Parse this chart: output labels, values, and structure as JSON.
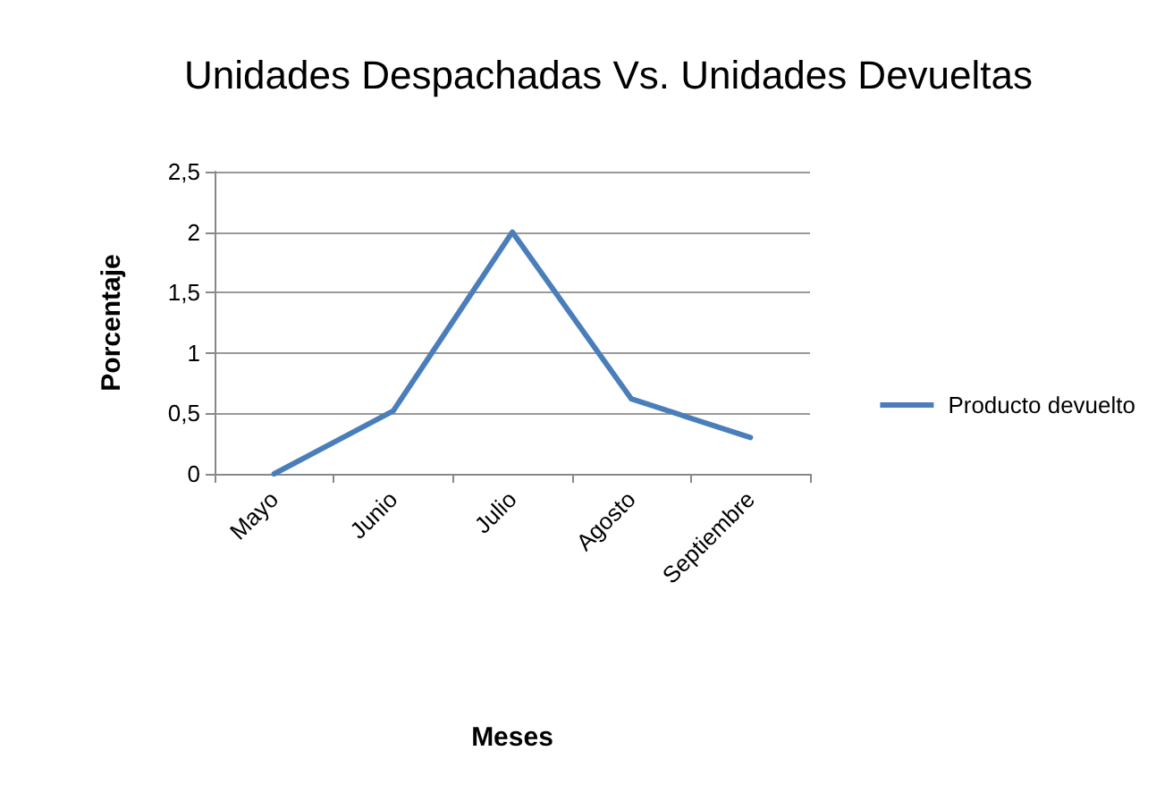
{
  "chart_data": {
    "type": "line",
    "title": "Unidades Despachadas Vs. Unidades Devueltas",
    "xlabel": "Meses",
    "ylabel": "Porcentaje",
    "categories": [
      "Mayo",
      "Junio",
      "Julio",
      "Agosto",
      "Septiembre"
    ],
    "series": [
      {
        "name": "Producto devuelto",
        "color": "#4a7ebb",
        "values": [
          0,
          0.52,
          2,
          0.62,
          0.3
        ]
      }
    ],
    "ylim": [
      0,
      2.5
    ],
    "yticks": [
      0,
      {
        "value": 0.5,
        "label": "0,5"
      },
      1,
      {
        "value": 1.5,
        "label": "1,5"
      },
      2,
      {
        "value": 2.5,
        "label": "2,5"
      }
    ],
    "grid": "y",
    "legend": "right",
    "marker": "none",
    "line_style": "solid"
  }
}
